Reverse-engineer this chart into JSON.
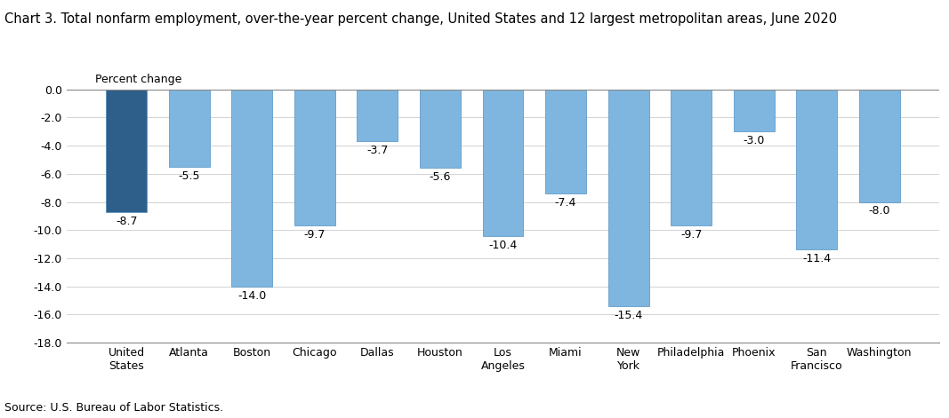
{
  "title": "Chart 3. Total nonfarm employment, over-the-year percent change, United States and 12 largest metropolitan areas, June 2020",
  "ylabel": "Percent change",
  "source": "Source: U.S. Bureau of Labor Statistics.",
  "categories": [
    "United\nStates",
    "Atlanta",
    "Boston",
    "Chicago",
    "Dallas",
    "Houston",
    "Los\nAngeles",
    "Miami",
    "New\nYork",
    "Philadelphia",
    "Phoenix",
    "San\nFrancisco",
    "Washington"
  ],
  "values": [
    -8.7,
    -5.5,
    -14.0,
    -9.7,
    -3.7,
    -5.6,
    -10.4,
    -7.4,
    -15.4,
    -9.7,
    -3.0,
    -11.4,
    -8.0
  ],
  "bar_colors": [
    "#2E5F8A",
    "#7EB6E0",
    "#7EB6E0",
    "#7EB6E0",
    "#7EB6E0",
    "#7EB6E0",
    "#7EB6E0",
    "#7EB6E0",
    "#7EB6E0",
    "#7EB6E0",
    "#7EB6E0",
    "#7EB6E0",
    "#7EB6E0"
  ],
  "bar_edge_color": "#5090C0",
  "ylim": [
    -18.0,
    0.4
  ],
  "yticks": [
    0.0,
    -2.0,
    -4.0,
    -6.0,
    -8.0,
    -10.0,
    -12.0,
    -14.0,
    -16.0,
    -18.0
  ],
  "title_fontsize": 10.5,
  "tick_fontsize": 9,
  "label_fontsize": 9,
  "source_fontsize": 9,
  "ylabel_fontsize": 9
}
